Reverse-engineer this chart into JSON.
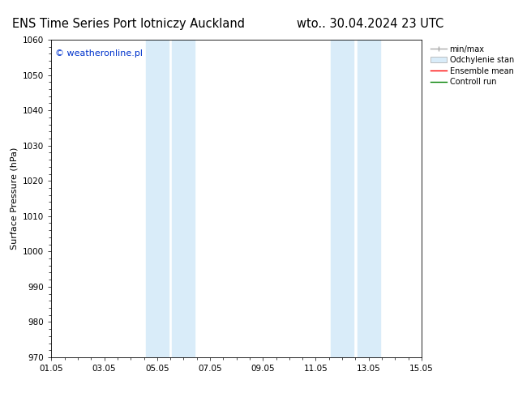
{
  "title_left": "ENS Time Series Port lotniczy Auckland",
  "title_right": "wto.. 30.04.2024 23 UTC",
  "ylabel": "Surface Pressure (hPa)",
  "xlabel_ticks": [
    "01.05",
    "03.05",
    "05.05",
    "07.05",
    "09.05",
    "11.05",
    "13.05",
    "15.05"
  ],
  "x_tick_positions": [
    0,
    2,
    4,
    6,
    8,
    10,
    12,
    14
  ],
  "ylim": [
    970,
    1060
  ],
  "yticks": [
    970,
    980,
    990,
    1000,
    1010,
    1020,
    1030,
    1040,
    1050,
    1060
  ],
  "xlim": [
    0,
    14
  ],
  "shaded_regions": [
    {
      "x_start": 3.57,
      "x_end": 4.43,
      "color": "#d9ecf9"
    },
    {
      "x_start": 4.57,
      "x_end": 5.43,
      "color": "#d9ecf9"
    },
    {
      "x_start": 10.57,
      "x_end": 11.43,
      "color": "#d9ecf9"
    },
    {
      "x_start": 11.57,
      "x_end": 12.43,
      "color": "#d9ecf9"
    }
  ],
  "watermark": "© weatheronline.pl",
  "watermark_color": "#0033cc",
  "legend_items": [
    {
      "label": "min/max",
      "color": "#aaaaaa",
      "lw": 1.5,
      "linestyle": "-"
    },
    {
      "label": "Odchylenie standardowe",
      "color": "#ccdded",
      "lw": 8,
      "linestyle": "-"
    },
    {
      "label": "Ensemble mean run",
      "color": "#ff0000",
      "lw": 1.5,
      "linestyle": "-"
    },
    {
      "label": "Controll run",
      "color": "#008000",
      "lw": 1.5,
      "linestyle": "-"
    }
  ],
  "background_color": "#ffffff",
  "title_fontsize": 10.5,
  "axis_label_fontsize": 8,
  "tick_fontsize": 7.5,
  "watermark_fontsize": 8,
  "legend_fontsize": 7
}
